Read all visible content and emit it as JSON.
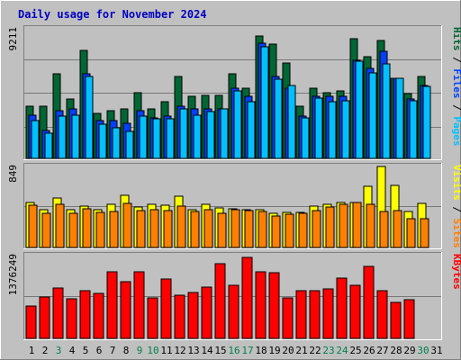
{
  "title": "Daily usage for November 2024",
  "colors": {
    "background": "#c0c0c0",
    "plot": "#c0c0c0",
    "frame_dark": "#808080",
    "frame_light": "#ffffff",
    "gridline": "#777777",
    "title": "#0000c0",
    "hits": "#006633",
    "files": "#0040ff",
    "pages": "#00c0ff",
    "visits": "#ffff00",
    "sites": "#ff8000",
    "kbytes": "#ff0000",
    "weekday": "#000000",
    "weekend": "#00804a"
  },
  "chart_data": [
    {
      "type": "bar",
      "title": "Pages / Files / Hits",
      "ylabel_parts": [
        "Pages",
        "Files",
        "Hits"
      ],
      "max_label": "9211",
      "ylim": [
        0,
        9211
      ],
      "categories": [
        "1",
        "2",
        "3",
        "4",
        "5",
        "6",
        "7",
        "8",
        "9",
        "10",
        "11",
        "12",
        "13",
        "14",
        "15",
        "16",
        "17",
        "18",
        "19",
        "20",
        "21",
        "22",
        "23",
        "24",
        "25",
        "26",
        "27",
        "28",
        "29",
        "30",
        "31"
      ],
      "series": [
        {
          "name": "Hits",
          "values": [
            3700,
            3700,
            6000,
            4200,
            7700,
            3200,
            3400,
            3500,
            4700,
            3500,
            4000,
            5800,
            4400,
            4500,
            4500,
            6000,
            5000,
            8700,
            8100,
            6800,
            3700,
            5000,
            4700,
            4800,
            8500,
            7200,
            8400,
            5700,
            4600,
            5800,
            0
          ]
        },
        {
          "name": "Files",
          "values": [
            3100,
            2000,
            3400,
            3500,
            6000,
            2700,
            2700,
            2500,
            3400,
            2900,
            3000,
            3700,
            3500,
            3500,
            3500,
            5000,
            4400,
            8200,
            5800,
            5000,
            3000,
            4400,
            4400,
            4400,
            7000,
            6400,
            7600,
            5700,
            4200,
            5200,
            0
          ]
        },
        {
          "name": "Pages",
          "values": [
            2700,
            1800,
            3000,
            3100,
            5800,
            2400,
            2200,
            1900,
            3000,
            2800,
            2800,
            3500,
            3100,
            3300,
            3500,
            4800,
            4000,
            7900,
            5600,
            5200,
            2900,
            4300,
            4000,
            4100,
            6900,
            6100,
            6700,
            5700,
            4100,
            5100,
            0
          ]
        }
      ]
    },
    {
      "type": "bar",
      "title": "Sites / Visits",
      "ylabel_parts": [
        "Sites",
        "Visits"
      ],
      "max_label": "849",
      "ylim": [
        0,
        849
      ],
      "categories": [
        "1",
        "2",
        "3",
        "4",
        "5",
        "6",
        "7",
        "8",
        "9",
        "10",
        "11",
        "12",
        "13",
        "14",
        "15",
        "16",
        "17",
        "18",
        "19",
        "20",
        "21",
        "22",
        "23",
        "24",
        "25",
        "26",
        "27",
        "28",
        "29",
        "30",
        "31"
      ],
      "series": [
        {
          "name": "Visits",
          "values": [
            470,
            400,
            515,
            400,
            430,
            400,
            455,
            550,
            420,
            450,
            445,
            540,
            400,
            450,
            415,
            410,
            400,
            395,
            360,
            370,
            370,
            430,
            455,
            470,
            470,
            640,
            850,
            650,
            380,
            460,
            0
          ]
        },
        {
          "name": "Sites",
          "values": [
            440,
            360,
            450,
            360,
            410,
            370,
            375,
            460,
            390,
            400,
            390,
            430,
            380,
            400,
            355,
            395,
            390,
            380,
            330,
            350,
            360,
            390,
            420,
            450,
            470,
            450,
            380,
            385,
            300,
            300,
            0
          ]
        }
      ]
    },
    {
      "type": "bar",
      "title": "KBytes",
      "ylabel_parts": [
        "KBytes"
      ],
      "max_label": "1376249",
      "ylim": [
        0,
        1376249
      ],
      "categories": [
        "1",
        "2",
        "3",
        "4",
        "5",
        "6",
        "7",
        "8",
        "9",
        "10",
        "11",
        "12",
        "13",
        "14",
        "15",
        "16",
        "17",
        "18",
        "19",
        "20",
        "21",
        "22",
        "23",
        "24",
        "25",
        "26",
        "27",
        "28",
        "29",
        "30",
        "31"
      ],
      "series": [
        {
          "name": "KBytes",
          "values": [
            540000,
            690000,
            840000,
            660000,
            790000,
            750000,
            1110000,
            940000,
            1100000,
            680000,
            980000,
            720000,
            760000,
            860000,
            1240000,
            880000,
            1350000,
            1100000,
            1090000,
            670000,
            800000,
            790000,
            820000,
            1000000,
            890000,
            1190000,
            800000,
            600000,
            640000,
            0,
            0
          ]
        }
      ]
    }
  ],
  "day_labels": [
    {
      "day": "1",
      "weekend": false
    },
    {
      "day": "2",
      "weekend": false
    },
    {
      "day": "3",
      "weekend": true
    },
    {
      "day": "4",
      "weekend": false
    },
    {
      "day": "5",
      "weekend": false
    },
    {
      "day": "6",
      "weekend": false
    },
    {
      "day": "7",
      "weekend": false
    },
    {
      "day": "8",
      "weekend": false
    },
    {
      "day": "9",
      "weekend": true
    },
    {
      "day": "10",
      "weekend": true
    },
    {
      "day": "11",
      "weekend": false
    },
    {
      "day": "12",
      "weekend": false
    },
    {
      "day": "13",
      "weekend": false
    },
    {
      "day": "14",
      "weekend": false
    },
    {
      "day": "15",
      "weekend": false
    },
    {
      "day": "16",
      "weekend": true
    },
    {
      "day": "17",
      "weekend": true
    },
    {
      "day": "18",
      "weekend": false
    },
    {
      "day": "19",
      "weekend": false
    },
    {
      "day": "20",
      "weekend": false
    },
    {
      "day": "21",
      "weekend": false
    },
    {
      "day": "22",
      "weekend": false
    },
    {
      "day": "23",
      "weekend": true
    },
    {
      "day": "24",
      "weekend": true
    },
    {
      "day": "25",
      "weekend": false
    },
    {
      "day": "26",
      "weekend": false
    },
    {
      "day": "27",
      "weekend": false
    },
    {
      "day": "28",
      "weekend": false
    },
    {
      "day": "29",
      "weekend": false
    },
    {
      "day": "30",
      "weekend": true
    },
    {
      "day": "31",
      "weekend": false
    }
  ]
}
